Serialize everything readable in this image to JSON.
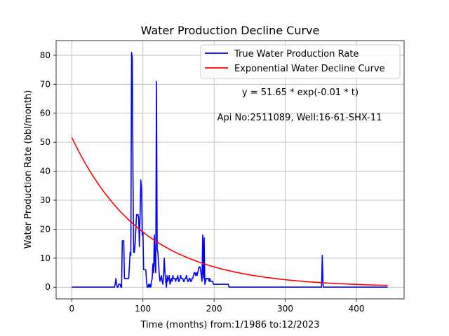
{
  "chart_data": {
    "type": "line",
    "title": "Water Production Decline Curve",
    "xlabel": "Time (months) from:1/1986 to:12/2023",
    "ylabel": "Water Production Rate (bbl/month)",
    "xlim": [
      -22,
      467
    ],
    "ylim": [
      -4.05,
      85.05
    ],
    "xticks": [
      0,
      100,
      200,
      300,
      400
    ],
    "yticks": [
      0,
      10,
      20,
      30,
      40,
      50,
      60,
      70,
      80
    ],
    "grid": true,
    "legend_position": "top-right",
    "annotations": [
      "y = 51.65 * exp(-0.01 * t)",
      "Api No:2511089, Well:16-61-SHX-11"
    ],
    "series": [
      {
        "name": "True Water Production Rate",
        "color": "#0000ff",
        "x": [
          0,
          60,
          61,
          62,
          63,
          64,
          65,
          66,
          67,
          68,
          69,
          70,
          71,
          72,
          73,
          74,
          75,
          76,
          78,
          80,
          82,
          83,
          84,
          85,
          86,
          87,
          88,
          89,
          90,
          91,
          92,
          93,
          94,
          95,
          96,
          97,
          98,
          99,
          100,
          101,
          102,
          103,
          104,
          105,
          106,
          107,
          108,
          109,
          110,
          111,
          112,
          113,
          114,
          115,
          116,
          117,
          118,
          119,
          120,
          121,
          122,
          123,
          124,
          125,
          126,
          127,
          128,
          129,
          130,
          131,
          132,
          133,
          134,
          135,
          136,
          137,
          138,
          139,
          140,
          141,
          142,
          143,
          144,
          145,
          146,
          147,
          148,
          149,
          150,
          151,
          152,
          153,
          154,
          155,
          156,
          157,
          158,
          159,
          160,
          161,
          162,
          163,
          164,
          165,
          166,
          167,
          168,
          169,
          170,
          171,
          172,
          173,
          174,
          175,
          176,
          177,
          178,
          179,
          180,
          181,
          182,
          183,
          184,
          185,
          186,
          187,
          188,
          189,
          190,
          191,
          192,
          193,
          194,
          195,
          196,
          197,
          198,
          199,
          200,
          201,
          202,
          205,
          208,
          211,
          214,
          217,
          220,
          221,
          300,
          350,
          351,
          352,
          353,
          354,
          355,
          400,
          444
        ],
        "y": [
          0,
          0,
          1,
          3,
          1,
          0,
          0,
          1,
          1,
          1,
          0,
          0,
          16,
          16,
          16,
          3,
          3,
          3,
          3,
          3,
          12,
          11,
          81,
          79,
          40,
          12,
          12,
          15,
          20,
          25,
          25,
          25,
          24,
          14,
          25,
          37,
          34,
          18,
          19,
          6,
          6,
          6,
          6,
          2,
          0,
          0,
          1,
          0,
          1,
          0,
          2,
          3,
          8,
          5,
          18,
          8,
          5,
          71,
          13,
          12,
          8,
          4,
          2,
          3,
          4,
          2,
          1,
          4,
          10,
          5,
          2,
          0,
          4,
          2,
          3,
          4,
          1,
          2,
          3,
          2,
          4,
          3,
          3,
          3,
          2,
          3,
          3,
          4,
          2,
          2,
          3,
          4,
          3,
          3,
          3,
          2,
          2,
          3,
          3,
          4,
          3,
          2,
          2,
          3,
          3,
          2,
          2,
          3,
          3,
          4,
          5,
          5,
          4,
          5,
          4,
          5,
          6,
          7,
          7,
          6,
          4,
          2,
          18,
          3,
          17,
          1,
          2,
          3,
          3,
          3,
          3,
          2,
          3,
          2,
          2,
          2,
          2,
          1,
          1,
          1,
          1,
          1,
          1,
          1,
          1,
          1,
          1,
          0,
          0,
          0,
          0,
          11,
          1,
          0,
          0,
          0,
          0
        ]
      },
      {
        "name": "Exponential Water Decline Curve",
        "color": "#ff0000",
        "equation": {
          "a": 51.65,
          "b": 0.01
        },
        "x": [
          0,
          444
        ]
      }
    ]
  }
}
